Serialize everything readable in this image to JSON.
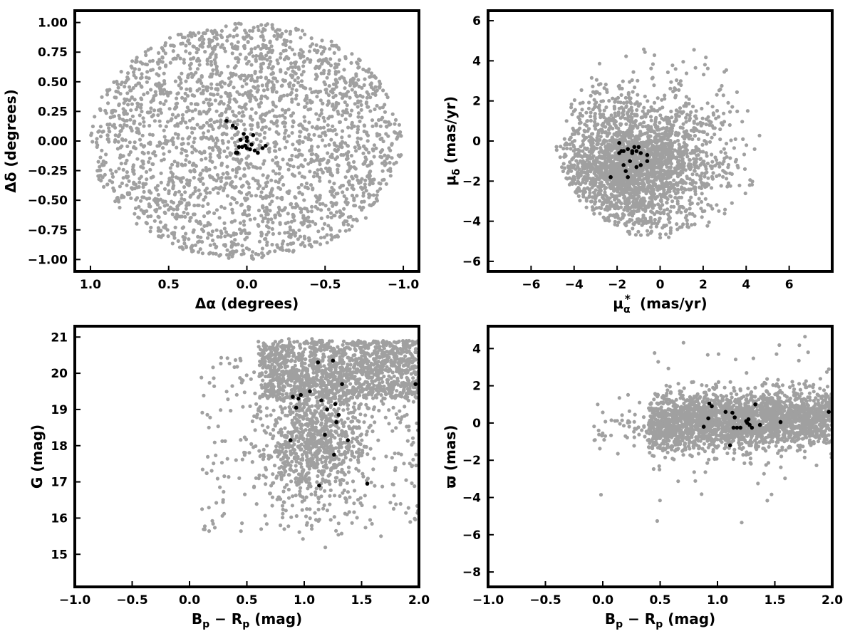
{
  "colors": {
    "background_stars": "#a0a0a0",
    "members": "#000000",
    "frame": "#000000"
  },
  "chart_data": [
    {
      "id": "p1",
      "type": "scatter",
      "xlabel": "Δα (degrees)",
      "ylabel": "Δδ (degrees)",
      "xlim": [
        1.1,
        -1.1
      ],
      "ylim": [
        -1.1,
        1.1
      ],
      "x_inverted": true,
      "xticks": [
        1.0,
        0.5,
        0.0,
        -0.5,
        -1.0
      ],
      "xtick_labels": [
        "1.0",
        "0.5",
        "0.0",
        "−0.5",
        "−1.0"
      ],
      "yticks": [
        1.0,
        0.75,
        0.5,
        0.25,
        0.0,
        -0.25,
        -0.5,
        -0.75,
        -1.0
      ],
      "ytick_labels": [
        "1.00",
        "0.75",
        "0.50",
        "0.25",
        "0.00",
        "−0.25",
        "−0.50",
        "−0.75",
        "−1.00"
      ],
      "grid": false,
      "series": [
        {
          "role": "field",
          "color": "#a0a0a0",
          "n_points": 2500,
          "distribution": "uniform within circle of radius 1.0 deg"
        },
        {
          "role": "members",
          "color": "#000000",
          "x": [
            -0.12,
            -0.1,
            -0.07,
            -0.05,
            -0.04,
            -0.03,
            0.0,
            0.0,
            0.0,
            0.01,
            0.02,
            0.03,
            0.05,
            0.07,
            0.09,
            0.13,
            0.07,
            0.06,
            -0.02,
            0.04
          ],
          "y": [
            -0.04,
            -0.06,
            -0.1,
            -0.08,
            0.05,
            -0.03,
            0.03,
            0.0,
            -0.06,
            -0.04,
            0.06,
            -0.05,
            -0.05,
            0.11,
            0.13,
            0.17,
            -0.1,
            -0.1,
            -0.07,
            0.01
          ]
        }
      ]
    },
    {
      "id": "p2",
      "type": "scatter",
      "xlabel": "μα* (mas/yr)",
      "ylabel": "μδ (mas/yr)",
      "xlim": [
        -8,
        8
      ],
      "ylim": [
        -6.5,
        6.5
      ],
      "xticks": [
        -6,
        -4,
        -2,
        0,
        2,
        4,
        6
      ],
      "xtick_labels": [
        "−6",
        "−4",
        "−2",
        "0",
        "2",
        "4",
        "6"
      ],
      "yticks": [
        6,
        4,
        2,
        0,
        -2,
        -4,
        -6
      ],
      "ytick_labels": [
        "6",
        "4",
        "2",
        "0",
        "−2",
        "−4",
        "−6"
      ],
      "grid": false,
      "series": [
        {
          "role": "field",
          "color": "#a0a0a0",
          "n_points": 2500,
          "distribution": "concentrated near (-1.2, -1.2) within circle of radius 5 around (0,0)"
        },
        {
          "role": "members",
          "color": "#000000",
          "x": [
            -2.3,
            -1.9,
            -1.8,
            -1.7,
            -1.6,
            -1.5,
            -1.4,
            -1.3,
            -1.2,
            -1.1,
            -1.0,
            -0.9,
            -0.6,
            -0.6,
            -1.9,
            -1.3,
            -1.7,
            -1.1,
            -0.9,
            -1.5
          ],
          "y": [
            -1.8,
            -0.1,
            -0.5,
            -1.2,
            -1.5,
            -1.8,
            -1.0,
            -0.5,
            -0.3,
            -1.3,
            -0.3,
            -1.2,
            -0.7,
            -1.0,
            -0.6,
            -0.6,
            -0.5,
            -0.5,
            -0.6,
            -0.4
          ]
        }
      ]
    },
    {
      "id": "p3",
      "type": "scatter",
      "xlabel": "Bp − Rp (mag)",
      "ylabel": "G (mag)",
      "xlim": [
        -1.0,
        2.0
      ],
      "ylim": [
        14.1,
        21.3
      ],
      "xticks": [
        -1.0,
        -0.5,
        0.0,
        0.5,
        1.0,
        1.5,
        2.0
      ],
      "xtick_labels": [
        "−1.0",
        "−0.5",
        "0.0",
        "0.5",
        "1.0",
        "1.5",
        "2.0"
      ],
      "yticks": [
        15,
        16,
        17,
        18,
        19,
        20,
        21
      ],
      "ytick_labels": [
        "15",
        "16",
        "17",
        "18",
        "19",
        "20",
        "21"
      ],
      "grid": false,
      "series": [
        {
          "role": "field",
          "color": "#a0a0a0",
          "n_points": 2500,
          "distribution": "dense 18–21 mag at colour 0.7–2.0"
        },
        {
          "role": "members",
          "color": "#000000",
          "x": [
            0.9,
            0.93,
            0.97,
            1.05,
            1.12,
            1.15,
            1.25,
            1.27,
            1.3,
            1.33,
            1.28,
            1.2,
            1.18,
            1.38,
            0.88,
            1.26,
            1.13,
            1.55,
            1.97,
            0.95
          ],
          "y": [
            19.35,
            19.05,
            19.4,
            19.5,
            20.3,
            19.25,
            20.35,
            19.15,
            18.85,
            19.7,
            18.65,
            19.0,
            18.3,
            18.15,
            18.15,
            17.75,
            16.9,
            16.95,
            19.7,
            19.3
          ]
        }
      ]
    },
    {
      "id": "p4",
      "type": "scatter",
      "xlabel": "Bp − Rp (mag)",
      "ylabel": "ϖ (mas)",
      "xlim": [
        -1.0,
        2.0
      ],
      "ylim": [
        -8.8,
        5.2
      ],
      "xticks": [
        -1.0,
        -0.5,
        0.0,
        0.5,
        1.0,
        1.5,
        2.0
      ],
      "xtick_labels": [
        "−1.0",
        "−0.5",
        "0.0",
        "0.5",
        "1.0",
        "1.5",
        "2.0"
      ],
      "yticks": [
        4,
        2,
        0,
        -2,
        -4,
        -6,
        -8
      ],
      "ytick_labels": [
        "4",
        "2",
        "0",
        "−2",
        "−4",
        "−6",
        "−8"
      ],
      "grid": false,
      "series": [
        {
          "role": "field",
          "color": "#a0a0a0",
          "n_points": 2500,
          "distribution": "band around 0 mas, colour 0.4–2.0"
        },
        {
          "role": "members",
          "color": "#000000",
          "x": [
            0.88,
            0.92,
            0.93,
            0.95,
            1.07,
            1.13,
            1.15,
            1.14,
            1.17,
            1.2,
            1.25,
            1.27,
            1.28,
            1.3,
            1.33,
            1.37,
            1.55,
            1.97,
            1.11,
            1.26
          ],
          "y": [
            -0.2,
            0.25,
            1.05,
            0.9,
            0.6,
            0.55,
            0.3,
            -0.25,
            -0.25,
            -0.25,
            0.1,
            0.2,
            -0.1,
            -0.25,
            1.0,
            -0.1,
            0.05,
            0.6,
            -1.2,
            0.0
          ]
        }
      ]
    }
  ]
}
